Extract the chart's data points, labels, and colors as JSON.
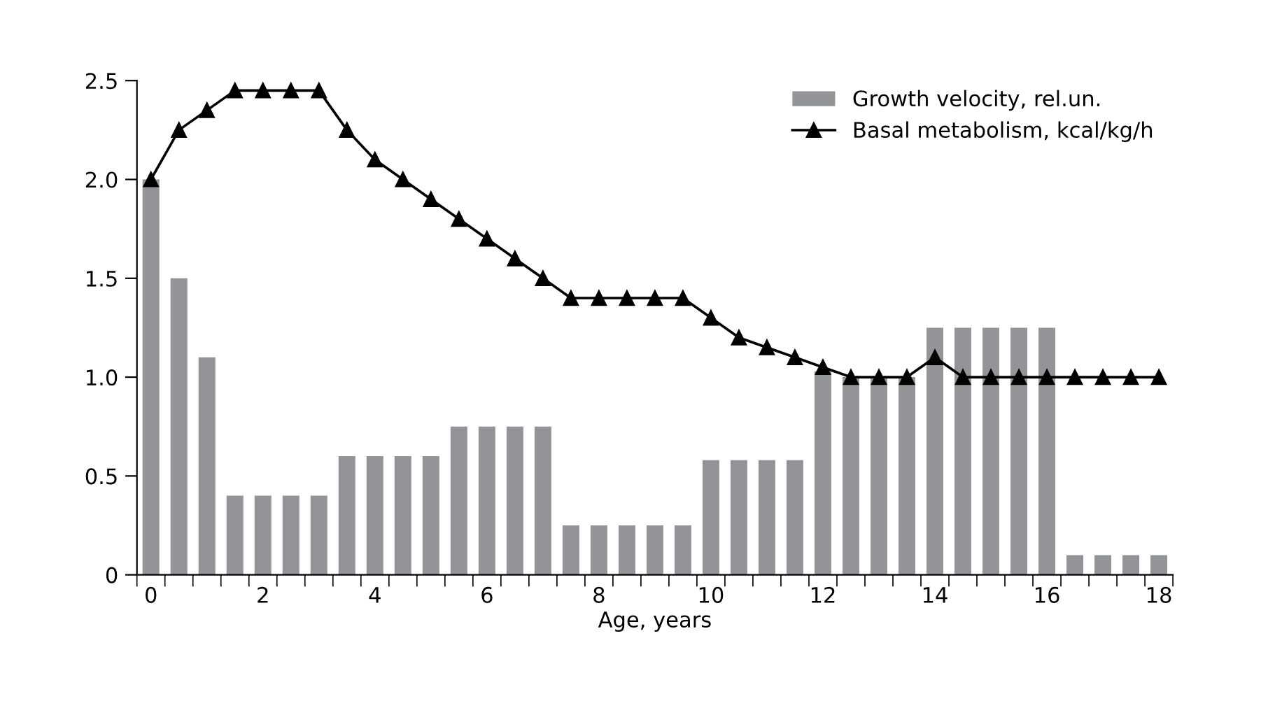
{
  "chart_data": {
    "type": "bar",
    "xlabel": "Age, years",
    "x": [
      0,
      0.5,
      1,
      1.5,
      2,
      2.5,
      3,
      3.5,
      4,
      4.5,
      5,
      5.5,
      6,
      6.5,
      7,
      7.5,
      8,
      8.5,
      9,
      9.5,
      10,
      10.5,
      11,
      11.5,
      12,
      12.5,
      13,
      13.5,
      14,
      14.5,
      15,
      15.5,
      16,
      16.5,
      17,
      17.5,
      18
    ],
    "series": [
      {
        "name": "Growth velocity, rel.un.",
        "color": "#929497",
        "values": [
          2.0,
          1.5,
          1.1,
          0.4,
          0.4,
          0.4,
          0.4,
          0.6,
          0.6,
          0.6,
          0.6,
          0.75,
          0.75,
          0.75,
          0.75,
          0.25,
          0.25,
          0.25,
          0.25,
          0.25,
          0.58,
          0.58,
          0.58,
          0.58,
          1.03,
          1.0,
          1.0,
          1.0,
          1.25,
          1.25,
          1.25,
          1.25,
          1.25,
          0.1,
          0.1,
          0.1,
          0.1
        ]
      },
      {
        "name": "Basal metabolism, kcal/kg/h",
        "type": "line",
        "color": "#000000",
        "marker": "triangle",
        "values": [
          2.0,
          2.25,
          2.35,
          2.45,
          2.45,
          2.45,
          2.45,
          2.25,
          2.1,
          2.0,
          1.9,
          1.8,
          1.7,
          1.6,
          1.5,
          1.4,
          1.4,
          1.4,
          1.4,
          1.4,
          1.3,
          1.2,
          1.15,
          1.1,
          1.05,
          1.0,
          1.0,
          1.0,
          1.1,
          1.0,
          1.0,
          1.0,
          1.0,
          1.0,
          1.0,
          1.0,
          1.0
        ]
      }
    ],
    "xlim": [
      -0.25,
      18.25
    ],
    "xticks": [
      0,
      2,
      4,
      6,
      8,
      10,
      12,
      14,
      16,
      18,
      {
        "value": -0.25,
        "label": null
      },
      {
        "value": 0.25,
        "label": null
      },
      {
        "value": 0.75,
        "label": null
      },
      {
        "value": 1.25,
        "label": null
      },
      {
        "value": 1.75,
        "label": null
      },
      {
        "value": 2.25,
        "label": null
      },
      {
        "value": 2.75,
        "label": null
      },
      {
        "value": 3.25,
        "label": null
      },
      {
        "value": 3.75,
        "label": null
      },
      {
        "value": 4.25,
        "label": null
      },
      {
        "value": 4.75,
        "label": null
      },
      {
        "value": 5.25,
        "label": null
      },
      {
        "value": 5.75,
        "label": null
      },
      {
        "value": 6.25,
        "label": null
      },
      {
        "value": 6.75,
        "label": null
      },
      {
        "value": 7.25,
        "label": null
      },
      {
        "value": 7.75,
        "label": null
      },
      {
        "value": 8.25,
        "label": null
      },
      {
        "value": 8.75,
        "label": null
      },
      {
        "value": 9.25,
        "label": null
      },
      {
        "value": 9.75,
        "label": null
      },
      {
        "value": 10.25,
        "label": null
      },
      {
        "value": 10.75,
        "label": null
      },
      {
        "value": 11.25,
        "label": null
      },
      {
        "value": 11.75,
        "label": null
      },
      {
        "value": 12.25,
        "label": null
      },
      {
        "value": 12.75,
        "label": null
      },
      {
        "value": 13.25,
        "label": null
      },
      {
        "value": 13.75,
        "label": null
      },
      {
        "value": 14.25,
        "label": null
      },
      {
        "value": 14.75,
        "label": null
      },
      {
        "value": 15.25,
        "label": null
      },
      {
        "value": 15.75,
        "label": null
      },
      {
        "value": 16.25,
        "label": null
      },
      {
        "value": 16.75,
        "label": null
      },
      {
        "value": 17.25,
        "label": null
      },
      {
        "value": 17.75,
        "label": null
      },
      {
        "value": 18.25,
        "label": null
      }
    ],
    "ylim": [
      0,
      2.5
    ],
    "yticks": [
      0,
      0.5,
      {
        "value": 1,
        "label": "1.0"
      },
      1.5,
      {
        "value": 2,
        "label": "2.0"
      },
      2.5
    ],
    "grid": false,
    "legend": "top right"
  }
}
